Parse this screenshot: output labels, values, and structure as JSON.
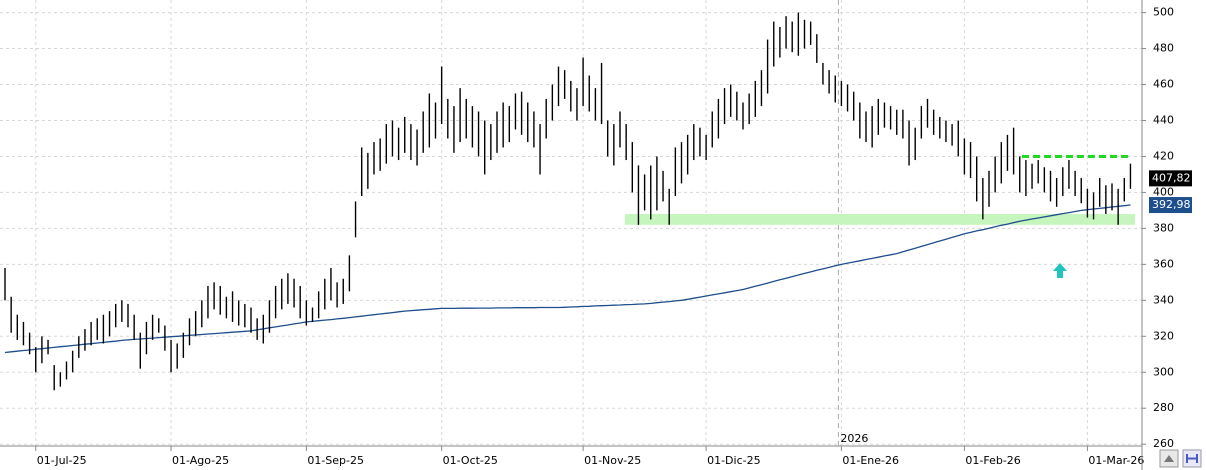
{
  "chart_data": {
    "type": "ohlc",
    "color": "#000000",
    "categories": [
      null,
      null,
      null,
      null,
      null,
      "01-Jul-25",
      null,
      null,
      null,
      null,
      null,
      null,
      null,
      null,
      null,
      null,
      null,
      null,
      null,
      null,
      null,
      null,
      null,
      null,
      null,
      null,
      null,
      "01-Ago-25",
      null,
      null,
      null,
      null,
      null,
      null,
      null,
      null,
      null,
      null,
      null,
      null,
      null,
      null,
      null,
      null,
      null,
      null,
      null,
      null,
      null,
      "01-Sep-25",
      null,
      null,
      null,
      null,
      null,
      null,
      null,
      null,
      null,
      null,
      null,
      null,
      null,
      null,
      null,
      null,
      null,
      null,
      null,
      null,
      null,
      "01-Oct-25",
      null,
      null,
      null,
      null,
      null,
      null,
      null,
      null,
      null,
      null,
      null,
      null,
      null,
      null,
      null,
      null,
      null,
      null,
      null,
      null,
      null,
      null,
      "01-Nov-25",
      null,
      null,
      null,
      null,
      null,
      null,
      null,
      null,
      null,
      null,
      null,
      null,
      null,
      null,
      null,
      null,
      null,
      null,
      null,
      "01-Dic-25",
      null,
      null,
      null,
      null,
      null,
      null,
      null,
      null,
      null,
      null,
      null,
      null,
      null,
      null,
      null,
      null,
      null,
      null,
      null,
      null,
      null,
      "01-Ene-26",
      null,
      null,
      null,
      null,
      null,
      null,
      null,
      null,
      null,
      null,
      null,
      null,
      null,
      null,
      null,
      null,
      null,
      null,
      null,
      "01-Feb-26",
      null,
      null,
      null,
      null,
      null,
      null,
      null,
      null,
      null,
      null,
      null,
      null,
      null,
      null,
      null,
      null,
      null,
      null,
      null,
      "01-Mar-26",
      null,
      null,
      null,
      null,
      null,
      null,
      null
    ],
    "high": [
      358,
      342,
      332,
      328,
      322,
      314,
      320,
      318,
      304,
      300,
      306,
      312,
      320,
      324,
      328,
      330,
      332,
      334,
      338,
      340,
      338,
      332,
      322,
      328,
      332,
      330,
      326,
      318,
      316,
      322,
      330,
      334,
      340,
      348,
      350,
      348,
      342,
      345,
      340,
      338,
      336,
      330,
      332,
      340,
      348,
      352,
      355,
      352,
      348,
      340,
      336,
      345,
      352,
      358,
      350,
      352,
      365,
      395,
      425,
      422,
      428,
      430,
      438,
      440,
      436,
      442,
      438,
      435,
      445,
      455,
      450,
      470,
      452,
      448,
      458,
      452,
      448,
      445,
      440,
      438,
      445,
      450,
      448,
      455,
      456,
      450,
      445,
      438,
      452,
      460,
      470,
      468,
      462,
      458,
      475,
      465,
      458,
      472,
      440,
      438,
      445,
      438,
      428,
      415,
      410,
      415,
      420,
      412,
      402,
      425,
      428,
      432,
      438,
      436,
      432,
      445,
      452,
      458,
      460,
      456,
      450,
      455,
      462,
      468,
      485,
      495,
      492,
      498,
      495,
      500,
      496,
      495,
      488,
      472,
      468,
      465,
      462,
      460,
      456,
      450,
      445,
      448,
      452,
      450,
      448,
      446,
      446,
      440,
      436,
      448,
      452,
      446,
      442,
      440,
      438,
      440,
      430,
      428,
      420,
      408,
      412,
      420,
      428,
      432,
      436,
      420,
      418,
      416,
      418,
      414,
      412,
      408,
      414,
      418,
      412,
      408,
      402,
      400,
      408,
      404,
      405,
      402,
      408,
      416
    ],
    "low": [
      340,
      322,
      318,
      315,
      310,
      300,
      305,
      310,
      290,
      292,
      296,
      300,
      308,
      312,
      315,
      318,
      316,
      320,
      325,
      328,
      325,
      318,
      302,
      310,
      318,
      322,
      312,
      300,
      302,
      308,
      315,
      320,
      325,
      330,
      335,
      332,
      330,
      328,
      326,
      325,
      322,
      318,
      316,
      322,
      330,
      335,
      338,
      336,
      330,
      326,
      328,
      330,
      335,
      340,
      336,
      338,
      345,
      375,
      398,
      402,
      410,
      412,
      416,
      420,
      418,
      422,
      418,
      415,
      422,
      425,
      430,
      438,
      430,
      422,
      428,
      430,
      425,
      420,
      410,
      418,
      422,
      425,
      428,
      435,
      432,
      428,
      425,
      410,
      430,
      440,
      448,
      452,
      445,
      440,
      448,
      445,
      440,
      438,
      420,
      415,
      425,
      418,
      400,
      382,
      390,
      385,
      390,
      395,
      382,
      398,
      405,
      410,
      418,
      420,
      418,
      425,
      430,
      438,
      442,
      440,
      435,
      438,
      442,
      448,
      455,
      470,
      475,
      480,
      478,
      476,
      480,
      482,
      472,
      460,
      455,
      450,
      448,
      445,
      440,
      430,
      428,
      425,
      432,
      436,
      435,
      432,
      430,
      415,
      418,
      430,
      436,
      432,
      430,
      428,
      426,
      420,
      410,
      408,
      395,
      385,
      392,
      400,
      405,
      412,
      410,
      400,
      398,
      402,
      405,
      400,
      395,
      392,
      398,
      402,
      398,
      394,
      386,
      385,
      392,
      388,
      390,
      382,
      395,
      402
    ],
    "moving_average": {
      "color": "#1f4e8c",
      "values": [
        311,
        311.4,
        311.7,
        312.1,
        312.4,
        312.8,
        313.1,
        313.5,
        313.8,
        314.2,
        314.5,
        314.9,
        315.2,
        315.6,
        315.9,
        316.3,
        316.6,
        317,
        317.3,
        317.7,
        318,
        318.3,
        318.5,
        318.8,
        319,
        319.3,
        319.5,
        319.8,
        320,
        320.3,
        320.5,
        320.8,
        321,
        321.3,
        321.5,
        321.8,
        322,
        322.3,
        322.5,
        322.8,
        323,
        323.6,
        324.1,
        324.7,
        325.2,
        325.8,
        326.3,
        326.9,
        327.4,
        328,
        328.3,
        328.7,
        329,
        329.3,
        329.7,
        330,
        330.4,
        330.8,
        331.2,
        331.6,
        332,
        332.4,
        332.8,
        333.2,
        333.6,
        334,
        334.3,
        334.5,
        334.8,
        335,
        335.3,
        335.5,
        335.5,
        335.5,
        335.6,
        335.6,
        335.6,
        335.7,
        335.7,
        335.7,
        335.8,
        335.8,
        335.8,
        335.9,
        335.9,
        335.9,
        335.9,
        336,
        336,
        336,
        336,
        336.1,
        336.3,
        336.4,
        336.6,
        336.7,
        336.9,
        337,
        337.1,
        337.3,
        337.4,
        337.6,
        337.7,
        337.9,
        338,
        338.3,
        338.7,
        339,
        339.3,
        339.7,
        340,
        340.6,
        341.2,
        341.8,
        342.4,
        343,
        343.6,
        344.2,
        344.8,
        345.4,
        346,
        346.9,
        347.8,
        348.7,
        349.6,
        350.5,
        351.4,
        352.3,
        353.2,
        354.1,
        355,
        355.8,
        356.7,
        357.5,
        358.3,
        359.2,
        360,
        360.7,
        361.3,
        362,
        362.7,
        363.3,
        364,
        364.7,
        365.3,
        366,
        367,
        368,
        369,
        370,
        371,
        372,
        373,
        374,
        375,
        376,
        377,
        377.8,
        378.6,
        379.3,
        380.1,
        380.9,
        381.7,
        382.4,
        383.2,
        384,
        384.6,
        385.2,
        385.8,
        386.4,
        387,
        387.6,
        388.2,
        388.8,
        389.4,
        390,
        390.4,
        390.8,
        391.1,
        391.5,
        391.9,
        392.3,
        392.6,
        393
      ]
    },
    "ylim": [
      259,
      507
    ],
    "yticks": [
      260,
      280,
      300,
      320,
      340,
      360,
      380,
      400,
      420,
      440,
      460,
      480,
      500
    ],
    "grid": true,
    "support_band": {
      "range": [
        382,
        388
      ],
      "color": "#c6f5be"
    },
    "resistance": {
      "value": 420,
      "color": "#22d822"
    },
    "last_price": {
      "value": 407.82,
      "label": "407,82"
    },
    "last_average": {
      "value": 392.98,
      "label": "392,98"
    },
    "year_annotation": "2026"
  }
}
